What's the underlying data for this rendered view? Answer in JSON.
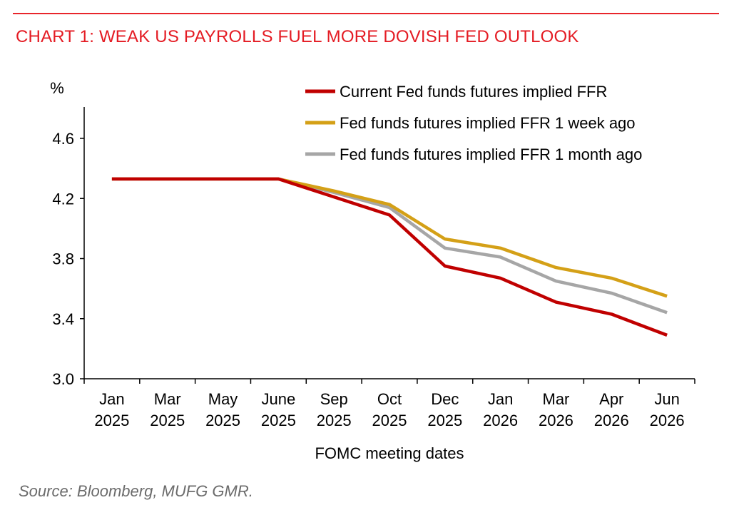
{
  "header": {
    "title": "CHART 1: WEAK US PAYROLLS FUEL MORE DOVISH FED OUTLOOK"
  },
  "footer": {
    "source": "Source: Bloomberg, MUFG GMR."
  },
  "colors": {
    "rule": "#e8252b",
    "title": "#e41b23",
    "axis": "#000000"
  },
  "chart_data": {
    "type": "line",
    "categories": [
      [
        "Jan",
        "2025"
      ],
      [
        "Mar",
        "2025"
      ],
      [
        "May",
        "2025"
      ],
      [
        "June",
        "2025"
      ],
      [
        "Sep",
        "2025"
      ],
      [
        "Oct",
        "2025"
      ],
      [
        "Dec",
        "2025"
      ],
      [
        "Jan",
        "2026"
      ],
      [
        "Mar",
        "2026"
      ],
      [
        "Apr",
        "2026"
      ],
      [
        "Jun",
        "2026"
      ]
    ],
    "xlabel": "FOMC meeting dates",
    "ylabel": "%",
    "ylim": [
      3.0,
      4.8
    ],
    "yticks": [
      3.0,
      3.4,
      3.8,
      4.2,
      4.6
    ],
    "ytick_labels": [
      "3.0",
      "3.4",
      "3.8",
      "4.2",
      "4.6"
    ],
    "grid": false,
    "legend_position": "top-right",
    "series": [
      {
        "name": "Current Fed funds futures implied FFR",
        "color": "#c00000",
        "values": [
          4.33,
          4.33,
          4.33,
          4.33,
          4.21,
          4.09,
          3.75,
          3.67,
          3.51,
          3.43,
          3.29
        ]
      },
      {
        "name": "Fed funds futures implied FFR 1 week ago",
        "color": "#d4a017",
        "values": [
          4.33,
          4.33,
          4.33,
          4.33,
          4.25,
          4.16,
          3.93,
          3.87,
          3.74,
          3.67,
          3.55
        ]
      },
      {
        "name": "Fed funds futures implied FFR 1 month ago",
        "color": "#a6a6a6",
        "values": [
          4.33,
          4.33,
          4.33,
          4.33,
          4.24,
          4.14,
          3.87,
          3.81,
          3.65,
          3.57,
          3.44
        ]
      }
    ]
  }
}
